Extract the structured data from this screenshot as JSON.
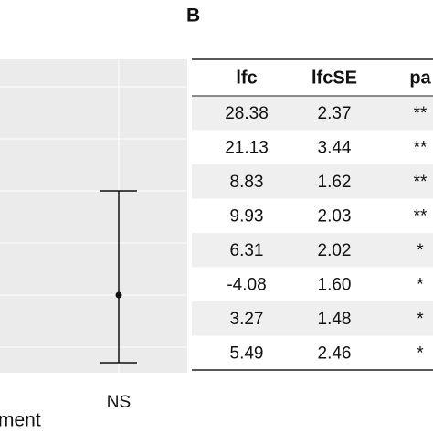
{
  "panel_a": {
    "x_label": "ment",
    "category": "NS"
  },
  "panel_b": {
    "label": "B",
    "table": {
      "columns": [
        "lfc",
        "lfcSE",
        "pa"
      ],
      "rows": [
        [
          "28.38",
          "2.37",
          "**"
        ],
        [
          "21.13",
          "3.44",
          "**"
        ],
        [
          "8.83",
          "1.62",
          "**"
        ],
        [
          "9.93",
          "2.03",
          "**"
        ],
        [
          "6.31",
          "2.02",
          "*"
        ],
        [
          "-4.08",
          "1.60",
          "*"
        ],
        [
          "3.27",
          "1.48",
          "*"
        ],
        [
          "5.49",
          "2.46",
          "*"
        ]
      ]
    }
  }
}
